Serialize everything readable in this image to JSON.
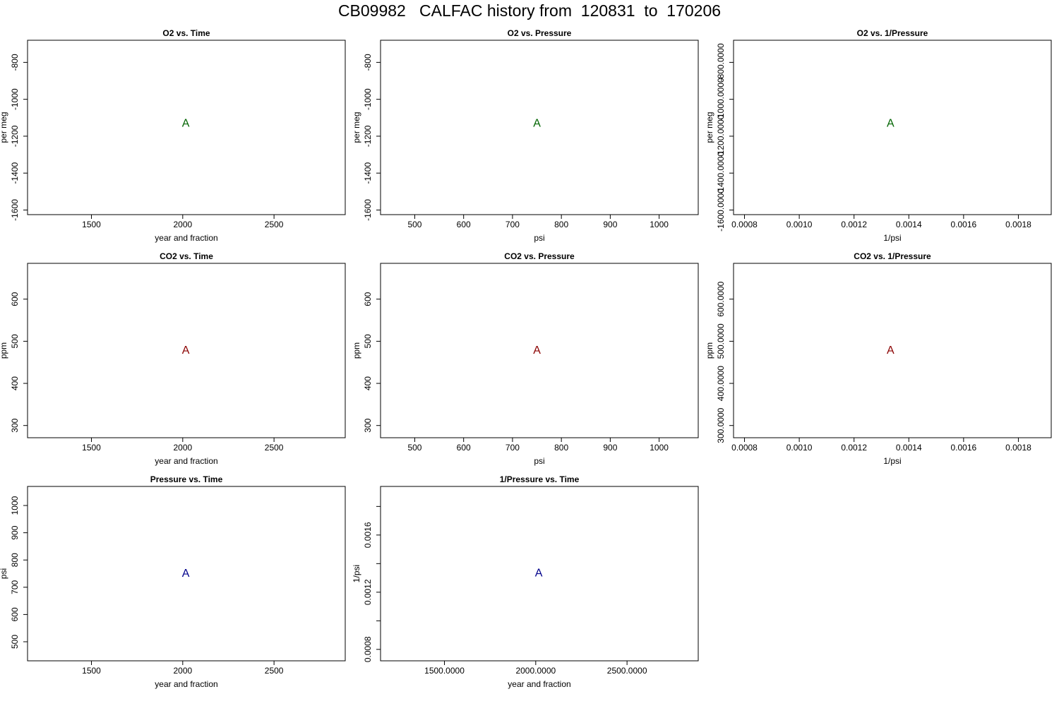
{
  "title": "CB09982   CALFAC history from  120831  to  170206",
  "colors": {
    "o2": "#006400",
    "co2": "#8b0000",
    "pressure": "#00008b",
    "axis": "#000000"
  },
  "chart_data": [
    {
      "id": "o2-vs-time",
      "type": "scatter",
      "title": "O2 vs. Time",
      "xlabel": "year and fraction",
      "ylabel": "per meg",
      "xlim": [
        1150,
        2890
      ],
      "ylim": [
        -1625,
        -680
      ],
      "xticks": [
        1500,
        2000,
        2500
      ],
      "yticks": [
        -800,
        -1000,
        -1200,
        -1400,
        -1600
      ],
      "tick_format": "int",
      "points": [
        {
          "x": 2016.5,
          "y": -1131,
          "label": "A",
          "color": "#006400"
        }
      ]
    },
    {
      "id": "o2-vs-pressure",
      "type": "scatter",
      "title": "O2 vs. Pressure",
      "xlabel": "psi",
      "ylabel": "per meg",
      "xlim": [
        430,
        1080
      ],
      "ylim": [
        -1625,
        -680
      ],
      "xticks": [
        500,
        600,
        700,
        800,
        900,
        1000
      ],
      "yticks": [
        -800,
        -1000,
        -1200,
        -1400,
        -1600
      ],
      "tick_format": "int",
      "points": [
        {
          "x": 750,
          "y": -1131,
          "label": "A",
          "color": "#006400"
        }
      ]
    },
    {
      "id": "o2-vs-inv-pressure",
      "type": "scatter",
      "title": "O2 vs. 1/Pressure",
      "xlabel": "1/psi",
      "ylabel": "per meg",
      "xlim": [
        0.00076,
        0.00192
      ],
      "ylim": [
        -1625,
        -680
      ],
      "xticks": [
        0.0008,
        0.001,
        0.0012,
        0.0014,
        0.0016,
        0.0018
      ],
      "yticks": [
        -800,
        -1000,
        -1200,
        -1400,
        -1600
      ],
      "tick_format": "x4",
      "points": [
        {
          "x": 0.001333,
          "y": -1131,
          "label": "A",
          "color": "#006400"
        }
      ]
    },
    {
      "id": "co2-vs-time",
      "type": "scatter",
      "title": "CO2 vs. Time",
      "xlabel": "year and fraction",
      "ylabel": "ppm",
      "xlim": [
        1150,
        2890
      ],
      "ylim": [
        271,
        685
      ],
      "xticks": [
        1500,
        2000,
        2500
      ],
      "yticks": [
        300,
        400,
        500,
        600
      ],
      "tick_format": "int",
      "points": [
        {
          "x": 2016.5,
          "y": 478,
          "label": "A",
          "color": "#8b0000"
        }
      ]
    },
    {
      "id": "co2-vs-pressure",
      "type": "scatter",
      "title": "CO2 vs. Pressure",
      "xlabel": "psi",
      "ylabel": "ppm",
      "xlim": [
        430,
        1080
      ],
      "ylim": [
        271,
        685
      ],
      "xticks": [
        500,
        600,
        700,
        800,
        900,
        1000
      ],
      "yticks": [
        300,
        400,
        500,
        600
      ],
      "tick_format": "int",
      "points": [
        {
          "x": 750,
          "y": 478,
          "label": "A",
          "color": "#8b0000"
        }
      ]
    },
    {
      "id": "co2-vs-inv-pressure",
      "type": "scatter",
      "title": "CO2 vs. 1/Pressure",
      "xlabel": "1/psi",
      "ylabel": "ppm",
      "xlim": [
        0.00076,
        0.00192
      ],
      "ylim": [
        271,
        685
      ],
      "xticks": [
        0.0008,
        0.001,
        0.0012,
        0.0014,
        0.0016,
        0.0018
      ],
      "yticks": [
        300,
        400,
        500,
        600
      ],
      "tick_format": "x4",
      "points": [
        {
          "x": 0.001333,
          "y": 478,
          "label": "A",
          "color": "#8b0000"
        }
      ]
    },
    {
      "id": "pressure-vs-time",
      "type": "scatter",
      "title": "Pressure vs. Time",
      "xlabel": "year and fraction",
      "ylabel": "psi",
      "xlim": [
        1150,
        2890
      ],
      "ylim": [
        430,
        1070
      ],
      "xticks": [
        1500,
        2000,
        2500
      ],
      "yticks": [
        500,
        600,
        700,
        800,
        900,
        1000
      ],
      "tick_format": "int",
      "points": [
        {
          "x": 2016.5,
          "y": 750,
          "label": "A",
          "color": "#00008b"
        }
      ]
    },
    {
      "id": "inv-pressure-vs-time",
      "type": "scatter",
      "title": "1/Pressure vs. Time",
      "xlabel": "year and fraction",
      "ylabel": "1/psi",
      "xlim": [
        1150,
        2890
      ],
      "ylim": [
        0.00072,
        0.00194
      ],
      "xticks": [
        1500,
        2000,
        2500
      ],
      "yticks": [
        0.0008,
        0.0012,
        0.0016
      ],
      "ytick_marks": [
        0.0008,
        0.001,
        0.0012,
        0.0014,
        0.0016,
        0.0018
      ],
      "tick_format": "x4",
      "points": [
        {
          "x": 2016.5,
          "y": 0.001333,
          "label": "A",
          "color": "#00008b"
        }
      ]
    }
  ]
}
